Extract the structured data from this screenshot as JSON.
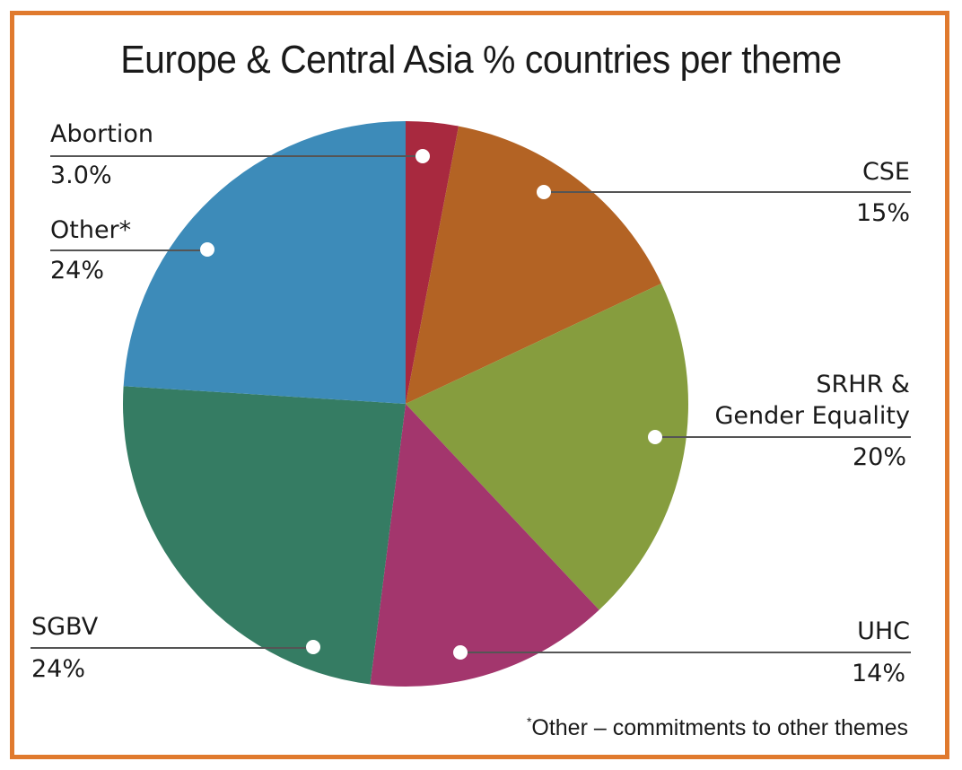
{
  "chart_data": {
    "type": "pie",
    "title": "Europe & Central Asia % countries per theme",
    "start_angle_deg": 0,
    "direction": "clockwise",
    "slices": [
      {
        "label": "Abortion",
        "value": 3.0,
        "display": "3.0%",
        "color": "#a8293f"
      },
      {
        "label": "CSE",
        "value": 15,
        "display": "15%",
        "color": "#b36324"
      },
      {
        "label": "SRHR & Gender Equality",
        "value": 20,
        "display": "20%",
        "color": "#869d3e"
      },
      {
        "label": "UHC",
        "value": 14,
        "display": "14%",
        "color": "#a3366d"
      },
      {
        "label": "SGBV",
        "value": 24,
        "display": "24%",
        "color": "#357c63"
      },
      {
        "label": "Other*",
        "value": 24,
        "display": "24%",
        "color": "#3d8bb9"
      }
    ],
    "footnote": "Other – commitments to other themes",
    "legend": "callout labels with leader lines"
  },
  "title": "Europe & Central Asia % countries per theme",
  "labels": {
    "abortion": {
      "name": "Abortion",
      "value": "3.0%"
    },
    "other": {
      "name": "Other*",
      "value": "24%"
    },
    "cse": {
      "name": "CSE",
      "value": "15%"
    },
    "srhr_line1": "SRHR &",
    "srhr_line2": "Gender Equality",
    "srhr_value": "20%",
    "sgbv": {
      "name": "SGBV",
      "value": "24%"
    },
    "uhc": {
      "name": "UHC",
      "value": "14%"
    }
  },
  "footnote": {
    "marker": "*",
    "text": "Other – commitments to other themes"
  },
  "colors": {
    "border": "#e07a2e",
    "leader": "#555555"
  }
}
